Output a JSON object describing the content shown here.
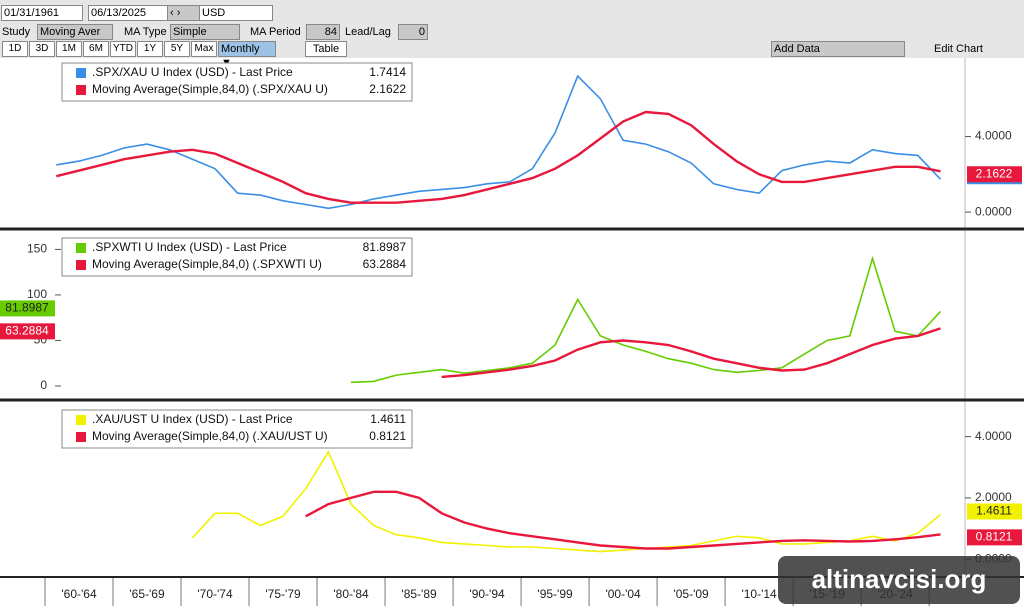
{
  "toolbar": {
    "start_date": "01/31/1961",
    "end_date": "06/13/2025",
    "currency": "USD",
    "study_label": "Study",
    "study": "Moving Aver",
    "ma_type_label": "MA Type",
    "ma_type": "Simple",
    "ma_period_label": "MA Period",
    "ma_period": "84",
    "lead_lag_label": "Lead/Lag",
    "lead_lag": "0",
    "ranges": [
      "1D",
      "3D",
      "1M",
      "6M",
      "YTD",
      "1Y",
      "5Y",
      "Max"
    ],
    "frequency": "Monthly ▼",
    "table": "Table",
    "add_data": "Add Data",
    "edit_chart": "Edit Chart"
  },
  "watermark": "altinavcisi.org",
  "chart_data": [
    {
      "type": "line",
      "axis_side": "right",
      "ylim": [
        -0.63,
        8.16
      ],
      "yticks": [
        {
          "value": 0,
          "label": "0.0000"
        },
        {
          "value": 4,
          "label": "4.0000"
        }
      ],
      "series": [
        {
          "name": ".SPX/XAU U Index (USD) - Last Price",
          "color": "#3a8ee6",
          "values": [
            2.5,
            2.7,
            3.0,
            3.4,
            3.6,
            3.3,
            2.8,
            2.3,
            1.0,
            0.9,
            0.6,
            0.4,
            0.2,
            0.4,
            0.7,
            0.9,
            1.1,
            1.2,
            1.3,
            1.5,
            1.6,
            2.3,
            4.2,
            7.2,
            6.0,
            3.8,
            3.6,
            3.2,
            2.6,
            1.5,
            1.2,
            1.0,
            2.2,
            2.5,
            2.7,
            2.6,
            3.3,
            3.1,
            3.0,
            1.7414
          ]
        },
        {
          "name": "Moving Average(Simple,84,0) (.SPX/XAU U)",
          "color": "#e8173c",
          "values": [
            1.9,
            2.2,
            2.5,
            2.8,
            3.0,
            3.2,
            3.3,
            3.1,
            2.6,
            2.1,
            1.6,
            1.0,
            0.7,
            0.5,
            0.5,
            0.5,
            0.6,
            0.7,
            0.9,
            1.2,
            1.5,
            1.8,
            2.3,
            3.0,
            3.9,
            4.8,
            5.3,
            5.2,
            4.6,
            3.6,
            2.7,
            2.0,
            1.6,
            1.6,
            1.8,
            2.0,
            2.2,
            2.4,
            2.4,
            2.1622
          ]
        }
      ]
    },
    {
      "type": "line",
      "axis_side": "left",
      "ylim": [
        -11,
        168
      ],
      "yticks": [
        0,
        50,
        100,
        150
      ],
      "series": [
        {
          "name": ".SPXWTI U Index (USD) - Last Price",
          "color": "#66cc00",
          "values": [
            null,
            null,
            null,
            null,
            null,
            null,
            null,
            null,
            null,
            null,
            null,
            null,
            null,
            4,
            5,
            12,
            15,
            18,
            14,
            17,
            20,
            25,
            45,
            95,
            55,
            45,
            38,
            30,
            25,
            18,
            15,
            17,
            20,
            35,
            50,
            55,
            140,
            60,
            55,
            81.8987
          ]
        },
        {
          "name": "Moving Average(Simple,84,0) (.SPXWTI U)",
          "color": "#e8173c",
          "values": [
            null,
            null,
            null,
            null,
            null,
            null,
            null,
            null,
            null,
            null,
            null,
            null,
            null,
            null,
            null,
            null,
            null,
            10,
            12,
            15,
            18,
            22,
            28,
            40,
            48,
            50,
            48,
            45,
            38,
            30,
            25,
            20,
            17,
            18,
            25,
            35,
            45,
            52,
            55,
            63.2884
          ]
        }
      ]
    },
    {
      "type": "line",
      "axis_side": "right",
      "ylim": [
        -0.48,
        5.03
      ],
      "yticks": [
        {
          "value": 0,
          "label": "0.0000"
        },
        {
          "value": 2,
          "label": "2.0000"
        },
        {
          "value": 4,
          "label": "4.0000"
        }
      ],
      "categories": [
        null,
        "'60-'64",
        null,
        null,
        "'65-'69",
        null,
        null,
        "'70-'74",
        null,
        null,
        "'75-'79",
        null,
        null,
        "'80-'84",
        null,
        null,
        "'85-'89",
        null,
        null,
        "'90-'94",
        null,
        null,
        "'95-'99",
        null,
        null,
        "'00-'04",
        null,
        null,
        "'05-'09",
        null,
        null,
        "'10-'14",
        null,
        null,
        "'15-'19",
        null,
        null,
        "'20-'24",
        null,
        null
      ],
      "series": [
        {
          "name": ".XAU/UST U Index (USD) - Last Price",
          "color": "#f2f200",
          "values": [
            null,
            null,
            null,
            null,
            null,
            null,
            0.7,
            1.5,
            1.5,
            1.1,
            1.4,
            2.3,
            3.5,
            1.8,
            1.1,
            0.8,
            0.7,
            0.55,
            0.5,
            0.45,
            0.4,
            0.4,
            0.35,
            0.3,
            0.25,
            0.3,
            0.35,
            0.4,
            0.45,
            0.6,
            0.75,
            0.7,
            0.5,
            0.5,
            0.55,
            0.6,
            0.75,
            0.6,
            0.85,
            1.4611
          ]
        },
        {
          "name": "Moving Average(Simple,84,0) (.XAU/UST U)",
          "color": "#e8173c",
          "values": [
            null,
            null,
            null,
            null,
            null,
            null,
            null,
            null,
            null,
            null,
            null,
            1.4,
            1.8,
            2.0,
            2.2,
            2.2,
            2.0,
            1.5,
            1.2,
            1.0,
            0.85,
            0.75,
            0.65,
            0.55,
            0.45,
            0.4,
            0.35,
            0.35,
            0.4,
            0.45,
            0.5,
            0.55,
            0.6,
            0.62,
            0.6,
            0.58,
            0.6,
            0.65,
            0.72,
            0.8121
          ]
        }
      ]
    }
  ]
}
